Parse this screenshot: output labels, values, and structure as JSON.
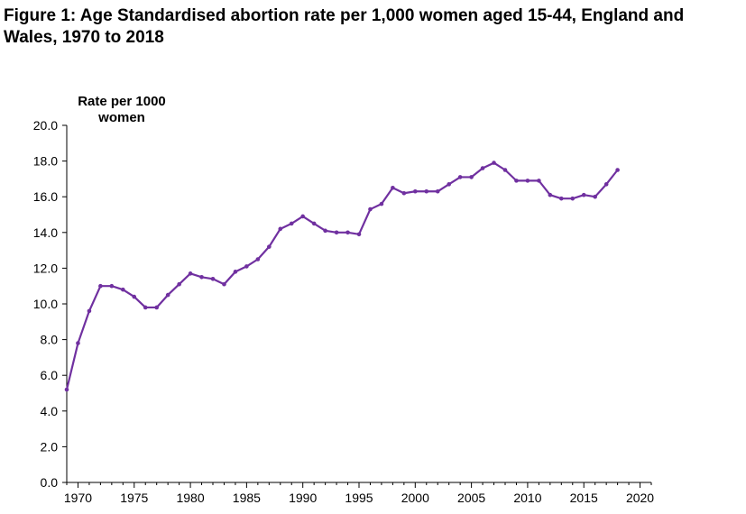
{
  "title": "Figure 1: Age Standardised abortion rate per 1,000 women aged 15-44, England and Wales, 1970 to 2018",
  "chart_data": {
    "type": "line",
    "title": "Figure 1: Age Standardised abortion rate per 1,000 women aged 15-44, England and Wales, 1970 to 2018",
    "xlabel": "",
    "ylabel": "Rate per 1000 women",
    "xlim": [
      1969,
      2021
    ],
    "ylim": [
      0,
      20
    ],
    "x_ticks": [
      1970,
      1975,
      1980,
      1985,
      1990,
      1995,
      2000,
      2005,
      2010,
      2015,
      2020
    ],
    "y_ticks": [
      "0.0",
      "2.0",
      "4.0",
      "6.0",
      "8.0",
      "10.0",
      "12.0",
      "14.0",
      "16.0",
      "18.0",
      "20.0"
    ],
    "grid": false,
    "legend": "none",
    "line_color": "#7030A0",
    "series": [
      {
        "x": [
          1969,
          1970,
          1971,
          1972,
          1973,
          1974,
          1975,
          1976,
          1977,
          1978,
          1979,
          1980,
          1981,
          1982,
          1983,
          1984,
          1985,
          1986,
          1987,
          1988,
          1989,
          1990,
          1991,
          1992,
          1993,
          1994,
          1995,
          1996,
          1997,
          1998,
          1999,
          2000,
          2001,
          2002,
          2003,
          2004,
          2005,
          2006,
          2007,
          2008,
          2009,
          2010,
          2011,
          2012,
          2013,
          2014,
          2015,
          2016,
          2017,
          2018
        ],
        "values": [
          5.2,
          7.8,
          9.6,
          11.0,
          11.0,
          10.8,
          10.4,
          9.8,
          9.8,
          10.5,
          11.1,
          11.7,
          11.5,
          11.4,
          11.1,
          11.8,
          12.1,
          12.5,
          13.2,
          14.2,
          14.5,
          14.9,
          14.5,
          14.1,
          14.0,
          14.0,
          13.9,
          15.3,
          15.6,
          16.5,
          16.2,
          16.3,
          16.3,
          16.3,
          16.7,
          17.1,
          17.1,
          17.6,
          17.9,
          17.5,
          16.9,
          16.9,
          16.9,
          16.1,
          15.9,
          15.9,
          16.1,
          16.0,
          16.7,
          17.5
        ]
      }
    ]
  }
}
